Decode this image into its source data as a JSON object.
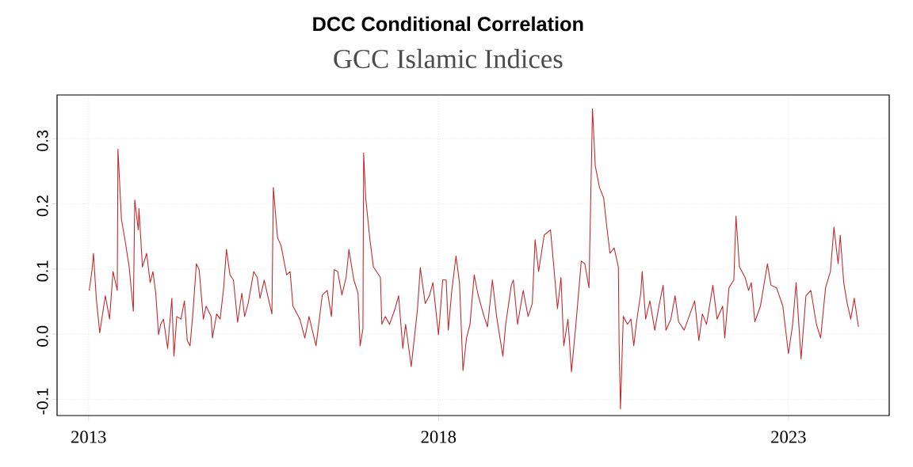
{
  "chart_data": {
    "type": "line",
    "title": "DCC Conditional Correlation",
    "subtitle": "GCC Islamic Indices",
    "color": "#c0282d",
    "xlim": [
      2012.55,
      2024.44
    ],
    "ylim": [
      -0.125,
      0.367
    ],
    "xticks": [
      2013,
      2018,
      2023
    ],
    "yticks": [
      {
        "value": -0.1,
        "label": "-0.1"
      },
      {
        "value": 0,
        "label": "0.0"
      },
      {
        "value": 0.1,
        "label": "0.1"
      },
      {
        "value": 0.2,
        "label": "0.2"
      },
      {
        "value": 0.3,
        "label": "0.3"
      }
    ],
    "grid": true,
    "x": [
      2013.01,
      2013.05,
      2013.07,
      2013.11,
      2013.16,
      2013.2,
      2013.24,
      2013.3,
      2013.35,
      2013.41,
      2013.42,
      2013.47,
      2013.52,
      2013.58,
      2013.64,
      2013.66,
      2013.71,
      2013.72,
      2013.77,
      2013.83,
      2013.88,
      2013.92,
      2013.96,
      2014.0,
      2014.03,
      2014.07,
      2014.13,
      2014.19,
      2014.22,
      2014.26,
      2014.32,
      2014.37,
      2014.41,
      2014.45,
      2014.49,
      2014.54,
      2014.58,
      2014.64,
      2014.68,
      2014.75,
      2014.77,
      2014.83,
      2014.88,
      2014.93,
      2014.97,
      2015.02,
      2015.07,
      2015.13,
      2015.19,
      2015.23,
      2015.28,
      2015.36,
      2015.41,
      2015.45,
      2015.51,
      2015.56,
      2015.62,
      2015.64,
      2015.7,
      2015.75,
      2015.83,
      2015.88,
      2015.92,
      2016.02,
      2016.09,
      2016.15,
      2016.25,
      2016.34,
      2016.41,
      2016.47,
      2016.51,
      2016.56,
      2016.62,
      2016.68,
      2016.72,
      2016.79,
      2016.85,
      2016.88,
      2016.92,
      2016.93,
      2016.96,
      2017.02,
      2017.07,
      2017.17,
      2017.19,
      2017.24,
      2017.3,
      2017.38,
      2017.43,
      2017.49,
      2017.53,
      2017.61,
      2017.66,
      2017.7,
      2017.74,
      2017.81,
      2017.87,
      2017.92,
      2018.0,
      2018.06,
      2018.11,
      2018.14,
      2018.19,
      2018.25,
      2018.3,
      2018.35,
      2018.4,
      2018.45,
      2018.51,
      2018.56,
      2018.64,
      2018.7,
      2018.77,
      2018.83,
      2018.92,
      2018.96,
      2019.04,
      2019.07,
      2019.13,
      2019.21,
      2019.28,
      2019.34,
      2019.38,
      2019.43,
      2019.51,
      2019.6,
      2019.64,
      2019.7,
      2019.75,
      2019.79,
      2019.85,
      2019.9,
      2019.96,
      2020.04,
      2020.09,
      2020.15,
      2020.2,
      2020.24,
      2020.3,
      2020.36,
      2020.4,
      2020.45,
      2020.51,
      2020.57,
      2020.58,
      2020.6,
      2020.64,
      2020.7,
      2020.75,
      2020.79,
      2020.83,
      2020.89,
      2020.91,
      2020.96,
      2021.02,
      2021.09,
      2021.15,
      2021.21,
      2021.25,
      2021.32,
      2021.38,
      2021.43,
      2021.51,
      2021.58,
      2021.66,
      2021.72,
      2021.77,
      2021.83,
      2021.92,
      2021.98,
      2022.06,
      2022.09,
      2022.15,
      2022.22,
      2022.25,
      2022.3,
      2022.38,
      2022.43,
      2022.47,
      2022.52,
      2022.6,
      2022.7,
      2022.75,
      2022.83,
      2022.92,
      2023.0,
      2023.06,
      2023.11,
      2023.18,
      2023.25,
      2023.32,
      2023.4,
      2023.46,
      2023.53,
      2023.6,
      2023.65,
      2023.71,
      2023.74,
      2023.79,
      2023.84,
      2023.89,
      2023.94,
      2024.0
    ],
    "values": [
      0.067,
      0.099,
      0.124,
      0.055,
      0.002,
      0.031,
      0.059,
      0.023,
      0.096,
      0.067,
      0.284,
      0.176,
      0.145,
      0.103,
      0.035,
      0.206,
      0.16,
      0.193,
      0.103,
      0.124,
      0.079,
      0.096,
      0.063,
      -0.001,
      0.015,
      0.023,
      -0.022,
      0.055,
      -0.034,
      0.027,
      0.023,
      0.051,
      -0.01,
      -0.018,
      0.031,
      0.108,
      0.099,
      0.023,
      0.043,
      0.027,
      -0.006,
      0.031,
      0.023,
      0.071,
      0.13,
      0.091,
      0.083,
      0.018,
      0.063,
      0.027,
      0.047,
      0.096,
      0.087,
      0.055,
      0.083,
      0.059,
      0.031,
      0.225,
      0.148,
      0.136,
      0.091,
      0.096,
      0.043,
      0.023,
      -0.006,
      0.027,
      -0.018,
      0.06,
      0.067,
      0.027,
      0.099,
      0.096,
      0.06,
      0.087,
      0.13,
      0.083,
      0.063,
      -0.018,
      0.008,
      0.278,
      0.209,
      0.145,
      0.103,
      0.087,
      0.015,
      0.027,
      0.015,
      0.039,
      0.059,
      -0.022,
      0.015,
      -0.05,
      -0.001,
      0.039,
      0.102,
      0.047,
      0.059,
      0.079,
      -0.001,
      0.083,
      0.083,
      0.006,
      0.067,
      0.12,
      0.079,
      -0.056,
      -0.006,
      0.015,
      0.091,
      0.063,
      0.031,
      0.011,
      0.083,
      0.027,
      -0.034,
      0.015,
      0.075,
      0.083,
      0.015,
      0.067,
      0.027,
      0.047,
      0.145,
      0.096,
      0.152,
      0.16,
      0.112,
      0.039,
      0.087,
      -0.018,
      0.023,
      -0.058,
      0.011,
      0.112,
      0.108,
      0.071,
      0.346,
      0.258,
      0.225,
      0.209,
      0.169,
      0.124,
      0.132,
      0.103,
      -0.01,
      -0.115,
      0.027,
      0.015,
      0.023,
      -0.018,
      0.019,
      0.063,
      0.096,
      0.023,
      0.051,
      0.006,
      0.043,
      0.075,
      0.006,
      0.023,
      0.059,
      0.019,
      0.006,
      0.027,
      0.051,
      -0.01,
      0.031,
      0.015,
      0.075,
      0.023,
      0.043,
      -0.006,
      0.071,
      0.083,
      0.181,
      0.103,
      0.087,
      0.067,
      0.079,
      0.019,
      0.043,
      0.108,
      0.075,
      0.071,
      0.043,
      -0.03,
      0.015,
      0.079,
      -0.038,
      0.059,
      0.067,
      0.015,
      -0.006,
      0.071,
      0.096,
      0.164,
      0.108,
      0.152,
      0.079,
      0.047,
      0.023,
      0.055,
      0.011
    ]
  }
}
